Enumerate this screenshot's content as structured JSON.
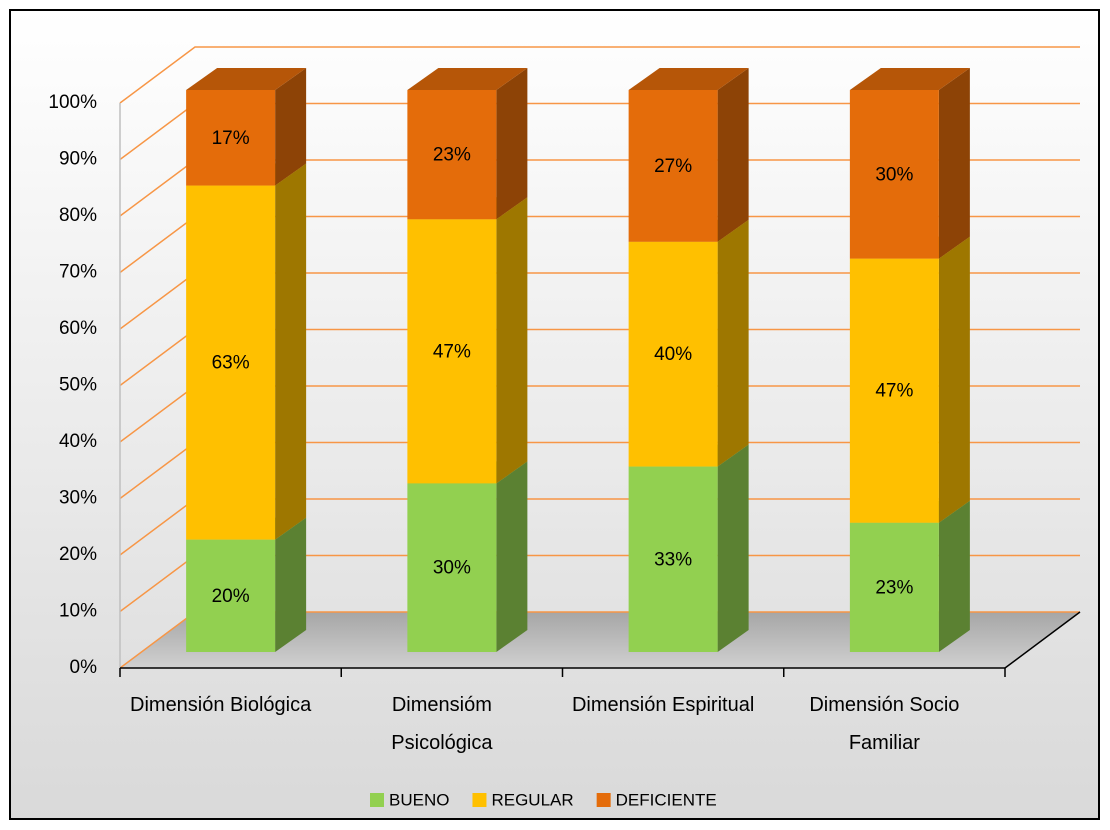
{
  "chart_data": {
    "type": "bar3d_stacked",
    "categories": [
      "Dimensión Biológica",
      "Dimensióm Psicológica",
      "Dimensión Espiritual",
      "Dimensión Socio Familiar"
    ],
    "series": [
      {
        "name": "BUENO",
        "color": "#92d050",
        "values": [
          20,
          30,
          33,
          23
        ],
        "value_labels": [
          "20%",
          "30%",
          "33%",
          "23%"
        ]
      },
      {
        "name": "REGULAR",
        "color": "#ffc000",
        "values": [
          63,
          47,
          40,
          47
        ],
        "value_labels": [
          "63%",
          "47%",
          "40%",
          "47%"
        ]
      },
      {
        "name": "DEFICIENTE",
        "color": "#e46c0a",
        "values": [
          17,
          23,
          27,
          30
        ],
        "value_labels": [
          "17%",
          "23%",
          "27%",
          "30%"
        ]
      }
    ],
    "ylim": [
      0,
      100
    ],
    "yticks": [
      {
        "value": 0,
        "label": "0%"
      },
      {
        "value": 10,
        "label": "10%"
      },
      {
        "value": 20,
        "label": "20%"
      },
      {
        "value": 30,
        "label": "30%"
      },
      {
        "value": 40,
        "label": "40%"
      },
      {
        "value": 50,
        "label": "50%"
      },
      {
        "value": 60,
        "label": "60%"
      },
      {
        "value": 70,
        "label": "70%"
      },
      {
        "value": 80,
        "label": "80%"
      },
      {
        "value": 90,
        "label": "90%"
      },
      {
        "value": 100,
        "label": "100%"
      }
    ],
    "grid": true,
    "grid_color": "#f79646",
    "legend": "bottom"
  }
}
